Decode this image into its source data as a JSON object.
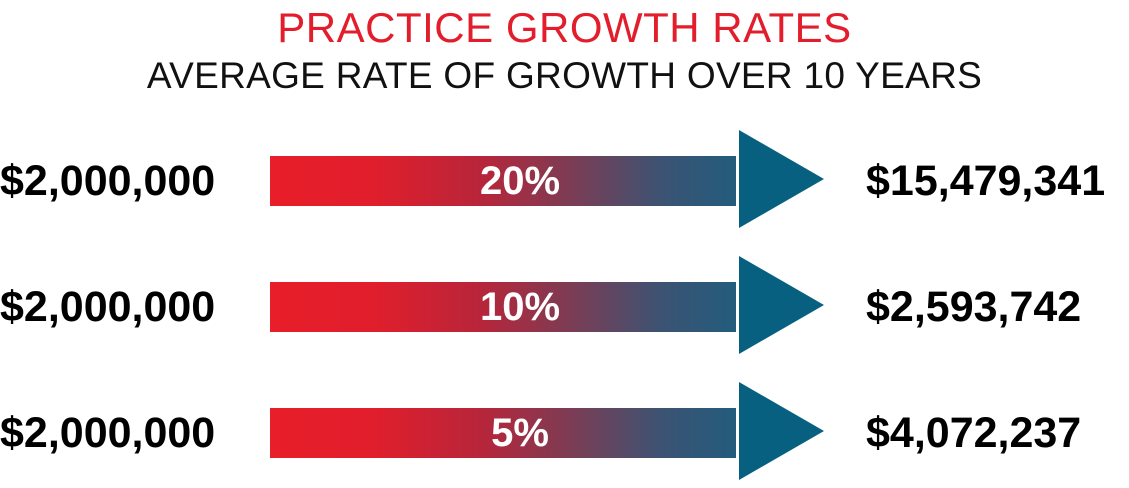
{
  "header": {
    "title": "PRACTICE GROWTH RATES",
    "subtitle": "AVERAGE RATE OF GROWTH OVER 10 YEARS"
  },
  "colors": {
    "title": "#e31e2c",
    "arrow_start": "#e81e2a",
    "arrow_end": "#235c7c",
    "arrow_head": "#07607f"
  },
  "rows": [
    {
      "start_value": "$2,000,000",
      "rate": "20%",
      "end_value": "$15,479,341"
    },
    {
      "start_value": "$2,000,000",
      "rate": "10%",
      "end_value": "$2,593,742"
    },
    {
      "start_value": "$2,000,000",
      "rate": "5%",
      "end_value": "$4,072,237"
    }
  ]
}
